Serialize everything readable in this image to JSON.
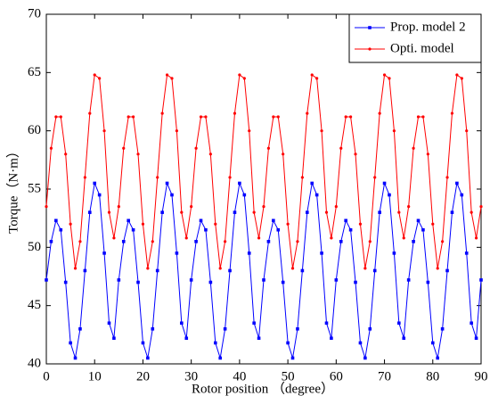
{
  "chart_data": {
    "type": "line",
    "xlabel": "Rotor position （degree）",
    "ylabel": "Torque（N·m）",
    "x": [
      0,
      1,
      2,
      3,
      4,
      5,
      6,
      7,
      8,
      9,
      10,
      11,
      12,
      13,
      14,
      15,
      16,
      17,
      18,
      19,
      20,
      21,
      22,
      23,
      24,
      25,
      26,
      27,
      28,
      29,
      30,
      31,
      32,
      33,
      34,
      35,
      36,
      37,
      38,
      39,
      40,
      41,
      42,
      43,
      44,
      45,
      46,
      47,
      48,
      49,
      50,
      51,
      52,
      53,
      54,
      55,
      56,
      57,
      58,
      59,
      60,
      61,
      62,
      63,
      64,
      65,
      66,
      67,
      68,
      69,
      70,
      71,
      72,
      73,
      74,
      75,
      76,
      77,
      78,
      79,
      80,
      81,
      82,
      83,
      84,
      85,
      86,
      87,
      88,
      89,
      90
    ],
    "series": [
      {
        "name": "Prop. model 2",
        "color": "#0000ff",
        "marker": "square",
        "values": [
          47.2,
          50.5,
          52.3,
          51.5,
          47,
          41.8,
          40.5,
          43,
          48,
          53,
          55.5,
          54.5,
          49.5,
          43.5,
          42.2,
          47.2,
          50.5,
          52.3,
          51.5,
          47,
          41.8,
          40.5,
          43,
          48,
          53,
          55.5,
          54.5,
          49.5,
          43.5,
          42.2,
          47.2,
          50.5,
          52.3,
          51.5,
          47,
          41.8,
          40.5,
          43,
          48,
          53,
          55.5,
          54.5,
          49.5,
          43.5,
          42.2,
          47.2,
          50.5,
          52.3,
          51.5,
          47,
          41.8,
          40.5,
          43,
          48,
          53,
          55.5,
          54.5,
          49.5,
          43.5,
          42.2,
          47.2,
          50.5,
          52.3,
          51.5,
          47,
          41.8,
          40.5,
          43,
          48,
          53,
          55.5,
          54.5,
          49.5,
          43.5,
          42.2,
          47.2,
          50.5,
          52.3,
          51.5,
          47,
          41.8,
          40.5,
          43,
          48,
          53,
          55.5,
          54.5,
          49.5,
          43.5,
          42.2,
          47.2
        ]
      },
      {
        "name": "Opti. model",
        "color": "#ff0000",
        "marker": "dot",
        "values": [
          53.5,
          58.5,
          61.2,
          61.2,
          58,
          52,
          48.2,
          50.5,
          56,
          61.5,
          64.8,
          64.5,
          60,
          53,
          50.8,
          53.5,
          58.5,
          61.2,
          61.2,
          58,
          52,
          48.2,
          50.5,
          56,
          61.5,
          64.8,
          64.5,
          60,
          53,
          50.8,
          53.5,
          58.5,
          61.2,
          61.2,
          58,
          52,
          48.2,
          50.5,
          56,
          61.5,
          64.8,
          64.5,
          60,
          53,
          50.8,
          53.5,
          58.5,
          61.2,
          61.2,
          58,
          52,
          48.2,
          50.5,
          56,
          61.5,
          64.8,
          64.5,
          60,
          53,
          50.8,
          53.5,
          58.5,
          61.2,
          61.2,
          58,
          52,
          48.2,
          50.5,
          56,
          61.5,
          64.8,
          64.5,
          60,
          53,
          50.8,
          53.5,
          58.5,
          61.2,
          61.2,
          58,
          52,
          48.2,
          50.5,
          56,
          61.5,
          64.8,
          64.5,
          60,
          53,
          50.8,
          53.5
        ]
      }
    ],
    "xlim": [
      0,
      90
    ],
    "xticks": [
      0,
      10,
      20,
      30,
      40,
      50,
      60,
      70,
      80,
      90
    ],
    "ylim": [
      40,
      70
    ],
    "yticks": [
      40,
      45,
      50,
      55,
      60,
      65,
      70
    ],
    "legend": "upper-right"
  }
}
